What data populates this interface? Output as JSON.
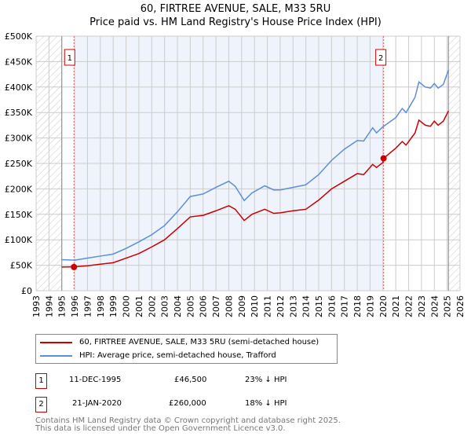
{
  "chart_data": {
    "type": "line",
    "title": "60, FIRTREE AVENUE, SALE, M33 5RU",
    "subtitle": "Price paid vs. HM Land Registry's House Price Index (HPI)",
    "xlim": [
      1993,
      2026
    ],
    "ylim": [
      0,
      500000
    ],
    "x_ticks": [
      "1993",
      "1994",
      "1995",
      "1996",
      "1997",
      "1998",
      "1999",
      "2000",
      "2001",
      "2002",
      "2003",
      "2004",
      "2005",
      "2006",
      "2007",
      "2008",
      "2009",
      "2010",
      "2011",
      "2012",
      "2013",
      "2014",
      "2015",
      "2016",
      "2017",
      "2018",
      "2019",
      "2020",
      "2021",
      "2022",
      "2023",
      "2024",
      "2025",
      "2026"
    ],
    "y_ticks": [
      {
        "v": 0,
        "l": "£0"
      },
      {
        "v": 50000,
        "l": "£50K"
      },
      {
        "v": 100000,
        "l": "£100K"
      },
      {
        "v": 150000,
        "l": "£150K"
      },
      {
        "v": 200000,
        "l": "£200K"
      },
      {
        "v": 250000,
        "l": "£250K"
      },
      {
        "v": 300000,
        "l": "£300K"
      },
      {
        "v": 350000,
        "l": "£350K"
      },
      {
        "v": 400000,
        "l": "£400K"
      },
      {
        "v": 450000,
        "l": "£450K"
      },
      {
        "v": 500000,
        "l": "£500K"
      }
    ],
    "data_range": [
      1995,
      2025.1
    ],
    "shaded_range": [
      1995.95,
      2020.05
    ],
    "series": [
      {
        "name": "60, FIRTREE AVENUE, SALE, M33 5RU (semi-detached house)",
        "color": "#cc0000",
        "x": [
          1995,
          1996,
          1997,
          1998,
          1999,
          2000,
          2001,
          2002,
          2003,
          2004,
          2005,
          2006,
          2007,
          2008,
          2008.5,
          2009.2,
          2009.8,
          2010.8,
          2011.5,
          2012,
          2013,
          2014,
          2015,
          2016,
          2017,
          2018,
          2018.5,
          2019.2,
          2019.5,
          2020,
          2020.05,
          2021,
          2021.5,
          2021.8,
          2022.5,
          2022.8,
          2023.3,
          2023.7,
          2024,
          2024.3,
          2024.7,
          2025.1
        ],
        "y": [
          46500,
          47000,
          49000,
          52000,
          55000,
          64000,
          73000,
          86000,
          100000,
          122000,
          145000,
          148000,
          157000,
          167000,
          160000,
          138000,
          150000,
          160000,
          152000,
          153000,
          157000,
          160000,
          178000,
          200000,
          215000,
          230000,
          228000,
          248000,
          242000,
          252000,
          260000,
          280000,
          293000,
          286000,
          310000,
          335000,
          325000,
          323000,
          333000,
          325000,
          333000,
          353000
        ]
      },
      {
        "name": "HPI: Average price, semi-detached house, Trafford",
        "color": "#5b8fd6",
        "x": [
          1995,
          1996,
          1997,
          1998,
          1999,
          2000,
          2001,
          2002,
          2003,
          2004,
          2005,
          2006,
          2007,
          2008,
          2008.5,
          2009.2,
          2009.8,
          2010.8,
          2011.5,
          2012,
          2013,
          2014,
          2015,
          2016,
          2017,
          2018,
          2018.5,
          2019.2,
          2019.5,
          2020,
          2021,
          2021.5,
          2021.8,
          2022.5,
          2022.8,
          2023.3,
          2023.7,
          2024,
          2024.3,
          2024.7,
          2025.1
        ],
        "y": [
          61000,
          60000,
          64000,
          68000,
          72000,
          83000,
          96000,
          110000,
          128000,
          155000,
          185000,
          190000,
          203000,
          215000,
          205000,
          177000,
          192000,
          206000,
          198000,
          198000,
          203000,
          208000,
          228000,
          256000,
          278000,
          295000,
          294000,
          320000,
          310000,
          322000,
          340000,
          358000,
          350000,
          380000,
          410000,
          400000,
          398000,
          407000,
          398000,
          405000,
          433000
        ]
      }
    ],
    "annotations": [
      {
        "label": "1",
        "x": 1995.95,
        "y": 46500
      },
      {
        "label": "2",
        "x": 2020.05,
        "y": 260000
      }
    ]
  },
  "legend": [
    "60, FIRTREE AVENUE, SALE, M33 5RU (semi-detached house)",
    "HPI: Average price, semi-detached house, Trafford"
  ],
  "transactions": [
    {
      "num": "1",
      "date": "11-DEC-1995",
      "price": "£46,500",
      "hpi": "23% ↓ HPI"
    },
    {
      "num": "2",
      "date": "21-JAN-2020",
      "price": "£260,000",
      "hpi": "18% ↓ HPI"
    }
  ],
  "footer": [
    "Contains HM Land Registry data © Crown copyright and database right 2025.",
    "This data is licensed under the Open Government Licence v3.0."
  ]
}
